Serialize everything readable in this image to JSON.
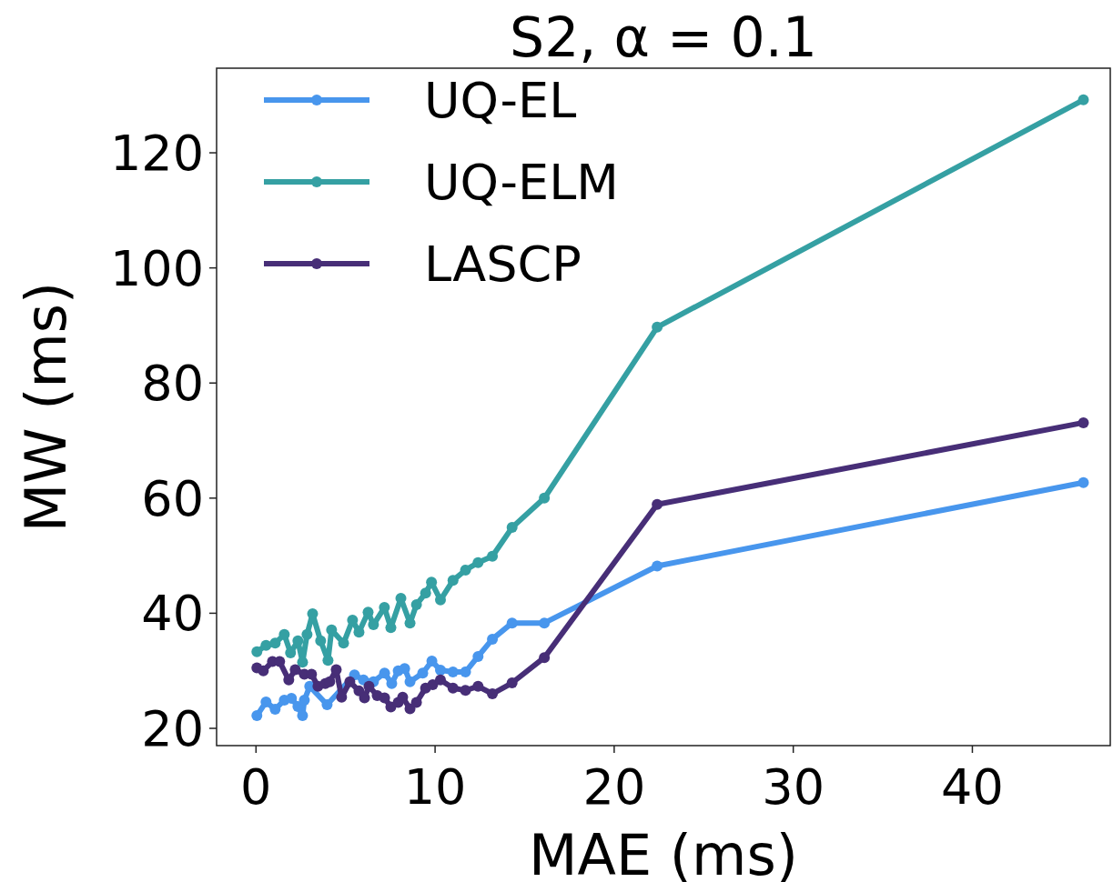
{
  "chart_data": {
    "type": "line",
    "title": "S2, α = 0.1",
    "xlabel": "MAE (ms)",
    "ylabel": "MW (ms)",
    "xlim": [
      -2.2,
      47.7
    ],
    "ylim": [
      17,
      134.7
    ],
    "xticks": [
      0,
      10,
      20,
      30,
      40
    ],
    "yticks": [
      20,
      40,
      60,
      80,
      100,
      120
    ],
    "grid": false,
    "legend": "top left",
    "marker": "circle",
    "line_style": "solid",
    "series": [
      {
        "name": "UQ-EL",
        "color": "#4896ed",
        "x": [
          0.05,
          0.56,
          1.07,
          1.58,
          1.98,
          2.34,
          2.6,
          2.7,
          3.0,
          3.97,
          5.5,
          6.0,
          6.56,
          7.18,
          7.58,
          7.94,
          8.3,
          8.6,
          9.31,
          9.82,
          10.3,
          11.0,
          11.7,
          12.4,
          13.2,
          14.3,
          16.1,
          22.4,
          46.2
        ],
        "values": [
          22.2,
          24.6,
          23.3,
          24.9,
          25.2,
          23.8,
          22.2,
          24.9,
          27.3,
          24.1,
          29.3,
          28.4,
          28.1,
          29.6,
          27.8,
          30.0,
          30.4,
          28.1,
          29.6,
          31.7,
          30.1,
          29.8,
          29.8,
          32.5,
          35.5,
          38.3,
          38.3,
          48.2,
          62.7
        ]
      },
      {
        "name": "UQ-ELM",
        "color": "#35a0a3",
        "x": [
          0.05,
          0.56,
          1.07,
          1.58,
          1.93,
          2.34,
          2.6,
          2.85,
          3.16,
          3.61,
          4.02,
          4.22,
          4.89,
          5.39,
          5.75,
          6.26,
          6.56,
          7.17,
          7.53,
          8.09,
          8.6,
          8.96,
          9.47,
          9.8,
          10.3,
          11.0,
          11.7,
          12.4,
          13.2,
          14.3,
          16.1,
          22.4,
          46.2
        ],
        "values": [
          33.3,
          34.4,
          34.8,
          36.3,
          33.1,
          35.2,
          31.5,
          36.3,
          39.9,
          35.2,
          31.8,
          37.1,
          34.8,
          38.8,
          36.7,
          40.2,
          38.0,
          41.0,
          37.5,
          42.6,
          38.3,
          41.5,
          43.5,
          45.4,
          42.3,
          45.7,
          47.5,
          48.8,
          49.9,
          54.9,
          60.0,
          89.7,
          129.2
        ]
      },
      {
        "name": "LASCP",
        "color": "#472e77",
        "x": [
          0.05,
          0.41,
          0.92,
          1.32,
          1.83,
          2.19,
          2.7,
          3.1,
          3.46,
          3.87,
          4.12,
          4.48,
          4.78,
          5.24,
          5.75,
          6.06,
          6.31,
          6.77,
          7.18,
          7.53,
          7.94,
          8.19,
          8.6,
          8.96,
          9.47,
          9.87,
          10.3,
          11.0,
          11.7,
          12.4,
          13.2,
          14.3,
          16.1,
          22.4,
          46.2
        ],
        "values": [
          30.5,
          30.0,
          31.6,
          31.6,
          28.4,
          30.2,
          29.4,
          29.4,
          27.3,
          27.8,
          28.1,
          30.2,
          25.4,
          28.1,
          26.5,
          25.3,
          27.3,
          25.7,
          25.3,
          23.7,
          24.5,
          25.4,
          23.4,
          24.5,
          27.0,
          27.6,
          28.4,
          27.0,
          26.6,
          27.3,
          26.0,
          27.9,
          32.3,
          58.9,
          73.1
        ]
      }
    ]
  }
}
